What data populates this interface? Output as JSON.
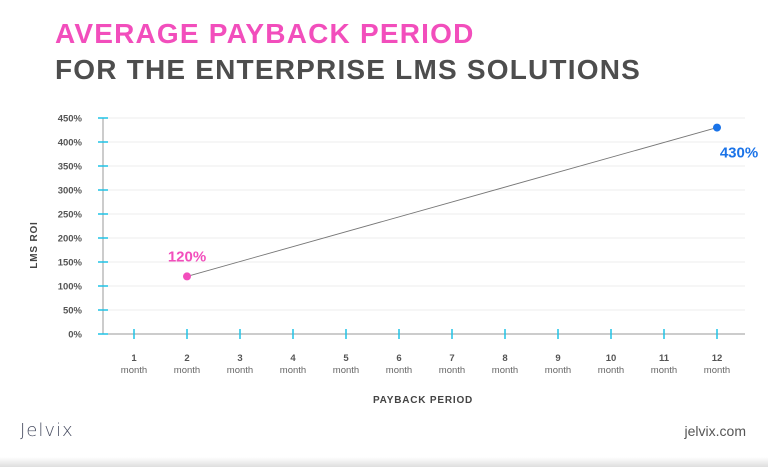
{
  "header": {
    "title_line1": "AVERAGE PAYBACK PERIOD",
    "title_line2": "FOR THE ENTERPRISE LMS SOLUTIONS"
  },
  "footer": {
    "brand": "Jelvix",
    "site": "jelvix.com"
  },
  "colors": {
    "pink": "#f24ebc",
    "blue": "#1a73e8",
    "tick": "#1fc2e6",
    "axis": "#9a9a9a",
    "grid": "#ececec",
    "title_dark": "#4d4d4d"
  },
  "chart_data": {
    "type": "line",
    "title": "AVERAGE PAYBACK PERIOD FOR THE ENTERPRISE LMS SOLUTIONS",
    "xlabel": "PAYBACK PERIOD",
    "ylabel": "LMS ROI",
    "categories": [
      "1 month",
      "2 month",
      "3 month",
      "4 month",
      "5 month",
      "6 month",
      "7 month",
      "8 month",
      "9 month",
      "10 month",
      "11 month",
      "12 month"
    ],
    "x_ticks": [
      {
        "num": "1",
        "unit": "month"
      },
      {
        "num": "2",
        "unit": "month"
      },
      {
        "num": "3",
        "unit": "month"
      },
      {
        "num": "4",
        "unit": "month"
      },
      {
        "num": "5",
        "unit": "month"
      },
      {
        "num": "6",
        "unit": "month"
      },
      {
        "num": "7",
        "unit": "month"
      },
      {
        "num": "8",
        "unit": "month"
      },
      {
        "num": "9",
        "unit": "month"
      },
      {
        "num": "10",
        "unit": "month"
      },
      {
        "num": "11",
        "unit": "month"
      },
      {
        "num": "12",
        "unit": "month"
      }
    ],
    "y_ticks": [
      "0%",
      "50%",
      "100%",
      "150%",
      "200%",
      "250%",
      "300%",
      "350%",
      "400%",
      "450%"
    ],
    "ylim": [
      0,
      450
    ],
    "grid": true,
    "points": [
      {
        "x": 2,
        "y": 120,
        "label": "120%",
        "color": "#f24ebc"
      },
      {
        "x": 12,
        "y": 430,
        "label": "430%",
        "color": "#1a73e8"
      }
    ]
  }
}
